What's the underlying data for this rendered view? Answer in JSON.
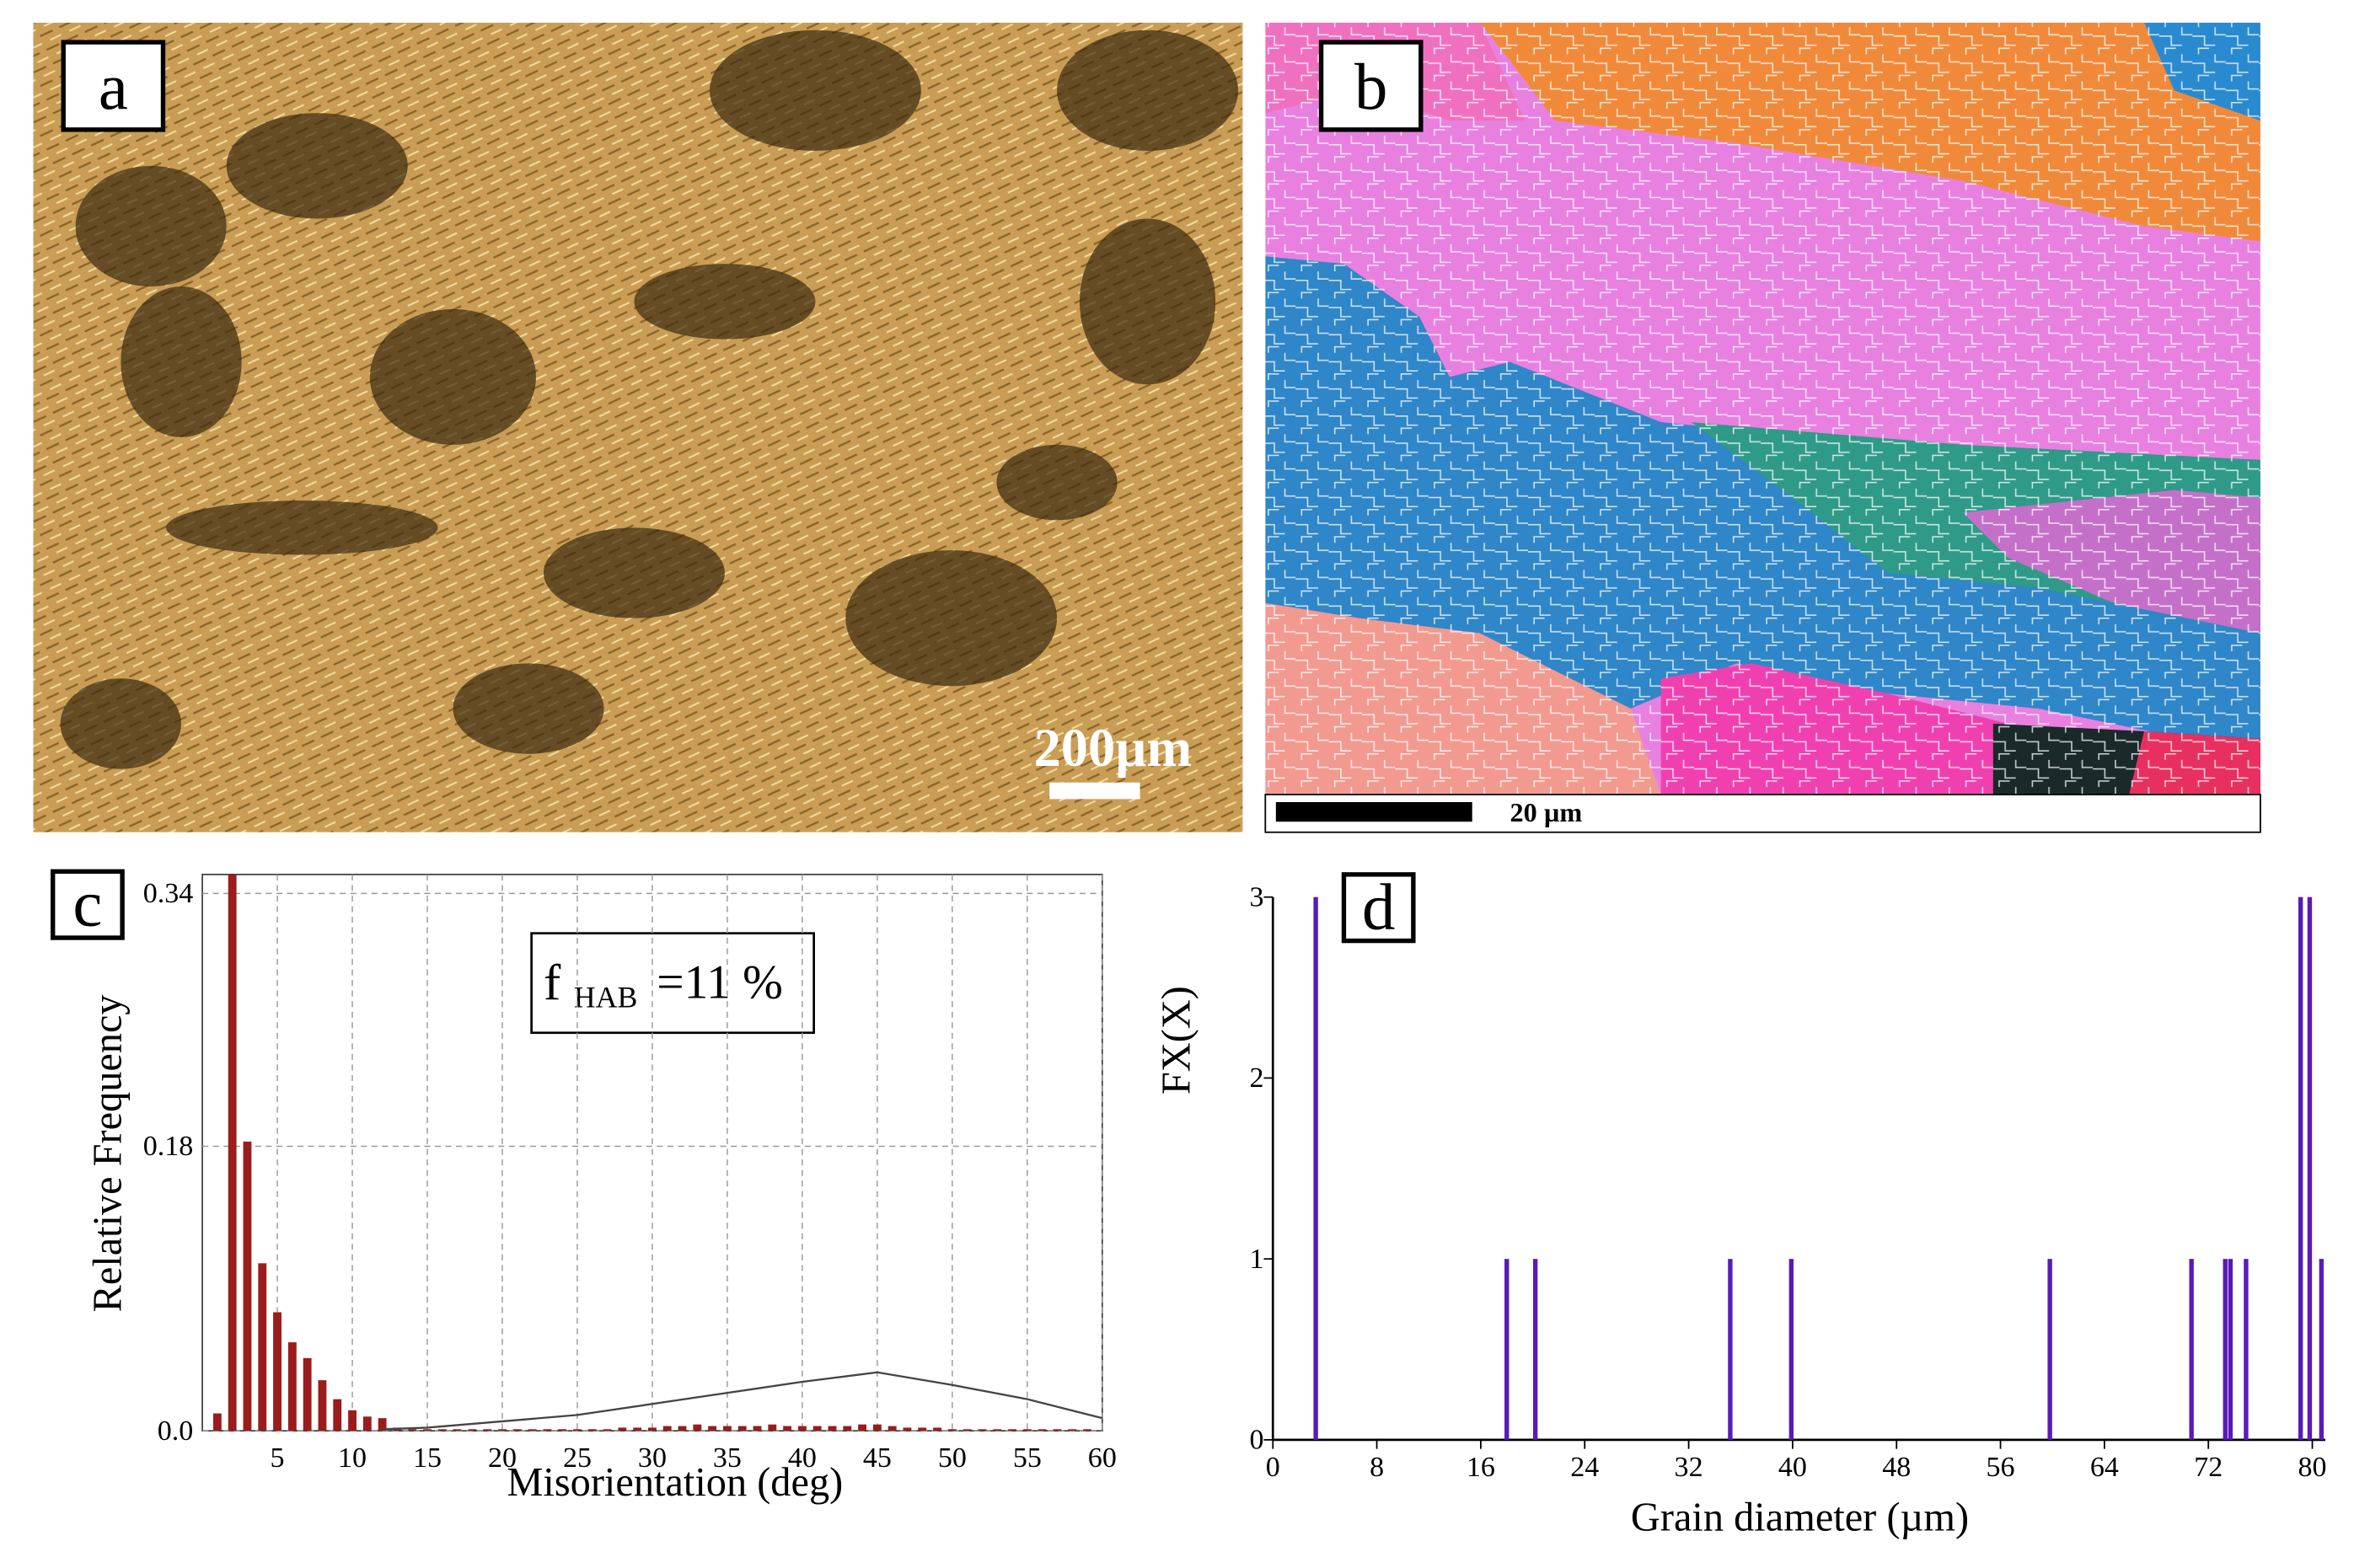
{
  "panels": {
    "a": "a",
    "b": "b",
    "c": "c",
    "d": "d",
    "scale_a": "200µm",
    "scale_b": "20 µm"
  },
  "chart_data": [
    {
      "type": "bar",
      "x": [
        1,
        2,
        3,
        4,
        5,
        6,
        7,
        8,
        9,
        10,
        11,
        12,
        13,
        14,
        15,
        16,
        17,
        18,
        19,
        20,
        21,
        22,
        23,
        24,
        25,
        26,
        27,
        28,
        29,
        30,
        31,
        32,
        33,
        34,
        35,
        36,
        37,
        38,
        39,
        40,
        41,
        42,
        43,
        44,
        45,
        46,
        47,
        48,
        49,
        50,
        51,
        52,
        53,
        54,
        55,
        56,
        57,
        58,
        59
      ],
      "values": [
        0.011,
        0.352,
        0.183,
        0.106,
        0.075,
        0.056,
        0.046,
        0.032,
        0.02,
        0.013,
        0.009,
        0.008,
        0.002,
        0.001,
        0.001,
        0.001,
        0.001,
        0.001,
        0.001,
        0.001,
        0.001,
        0.001,
        0.001,
        0.001,
        0.001,
        0.001,
        0.001,
        0.002,
        0.002,
        0.002,
        0.003,
        0.003,
        0.004,
        0.003,
        0.003,
        0.003,
        0.003,
        0.004,
        0.003,
        0.003,
        0.003,
        0.003,
        0.003,
        0.004,
        0.004,
        0.003,
        0.002,
        0.002,
        0.002,
        0.001,
        0.001,
        0.001,
        0.001,
        0.001,
        0.001,
        0.001,
        0.001,
        0.001,
        0.001
      ],
      "color": "#9b1c1c",
      "line": {
        "x": [
          12,
          15,
          20,
          25,
          30,
          35,
          40,
          45,
          50,
          55,
          60
        ],
        "values": [
          0.001,
          0.002,
          0.006,
          0.01,
          0.017,
          0.024,
          0.031,
          0.037,
          0.029,
          0.02,
          0.008
        ],
        "color": "#444444"
      },
      "xlim": [
        0,
        60
      ],
      "ylim": [
        0,
        0.352
      ],
      "xticks": [
        5,
        10,
        15,
        20,
        25,
        30,
        35,
        40,
        45,
        50,
        55,
        60
      ],
      "yticks": [
        {
          "value": 0,
          "label": "0.0"
        },
        0.18,
        0.34
      ],
      "grid": true,
      "xlabel": "Misorientation (deg)",
      "ylabel": "Relative Frequency",
      "annotation": {
        "symbol": "f",
        "subscript": "HAB",
        "text": "=11 %"
      }
    },
    {
      "type": "bar",
      "x": [
        3.3,
        18.0,
        20.2,
        35.2,
        39.9,
        59.8,
        70.7,
        73.3,
        73.7,
        74.9,
        79.1,
        79.8,
        80.7
      ],
      "values": [
        3,
        1,
        1,
        1,
        1,
        1,
        1,
        1,
        1,
        1,
        3,
        3,
        1
      ],
      "color": "#5a1ab8",
      "xlim": [
        0,
        81
      ],
      "ylim": [
        0,
        3
      ],
      "xticks": [
        0,
        8,
        16,
        24,
        32,
        40,
        48,
        56,
        64,
        72,
        80
      ],
      "yticks": [
        0,
        1,
        2,
        3
      ],
      "grid": false,
      "xlabel": "Grain diameter (µm)",
      "ylabel": "FX(X)"
    }
  ]
}
